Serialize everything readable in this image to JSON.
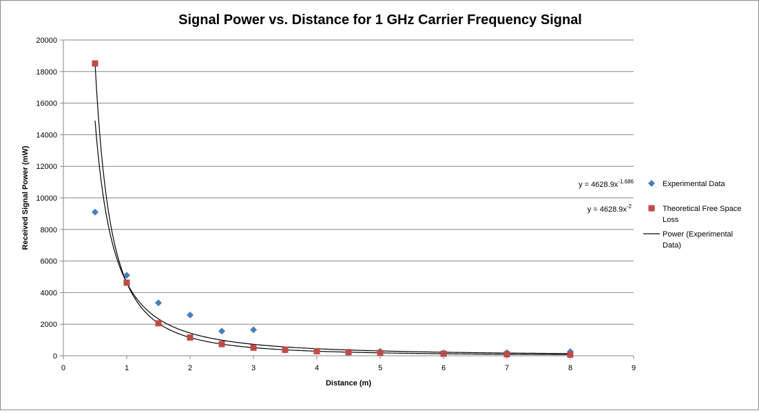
{
  "chart_data": {
    "type": "scatter",
    "title": "Signal Power vs. Distance for 1 GHz Carrier Frequency Signal",
    "xlabel": "Distance  (m)",
    "ylabel": "Received Signal Power (mW)",
    "xlim": [
      0,
      9
    ],
    "ylim": [
      0,
      20000
    ],
    "xticks": [
      0,
      1,
      2,
      3,
      4,
      5,
      6,
      7,
      8,
      9
    ],
    "yticks": [
      0,
      2000,
      4000,
      6000,
      8000,
      10000,
      12000,
      14000,
      16000,
      18000,
      20000
    ],
    "grid": "horizontal",
    "legend_position": "right",
    "series": [
      {
        "name": "Experimental Data",
        "marker": "diamond",
        "color": "#4a7ebb",
        "x": [
          0.5,
          1,
          1.5,
          2,
          2.5,
          3,
          3.5,
          4,
          4.5,
          5,
          6,
          7,
          8
        ],
        "y": [
          9100,
          5100,
          3350,
          2580,
          1560,
          1650,
          350,
          300,
          240,
          280,
          180,
          200,
          260
        ]
      },
      {
        "name": "Theoretical Free Space Loss",
        "marker": "square",
        "color": "#be4b48",
        "x": [
          0.5,
          1,
          1.5,
          2,
          2.5,
          3,
          3.5,
          4,
          4.5,
          5,
          6,
          7,
          8
        ],
        "y": [
          18515,
          4629,
          2057,
          1157,
          741,
          514,
          378,
          289,
          229,
          185,
          129,
          94,
          72
        ]
      }
    ],
    "trendlines": [
      {
        "name": "Power (Experimental Data)",
        "coefficient": 4628.9,
        "exponent": -1.686,
        "color": "#000000",
        "equation_base": "y = 4628.9x",
        "equation_exponent": "-1.686"
      },
      {
        "name": "",
        "coefficient": 4628.9,
        "exponent": -2,
        "color": "#000000",
        "equation_base": "y = 4628.9x",
        "equation_exponent": "-2"
      }
    ]
  }
}
